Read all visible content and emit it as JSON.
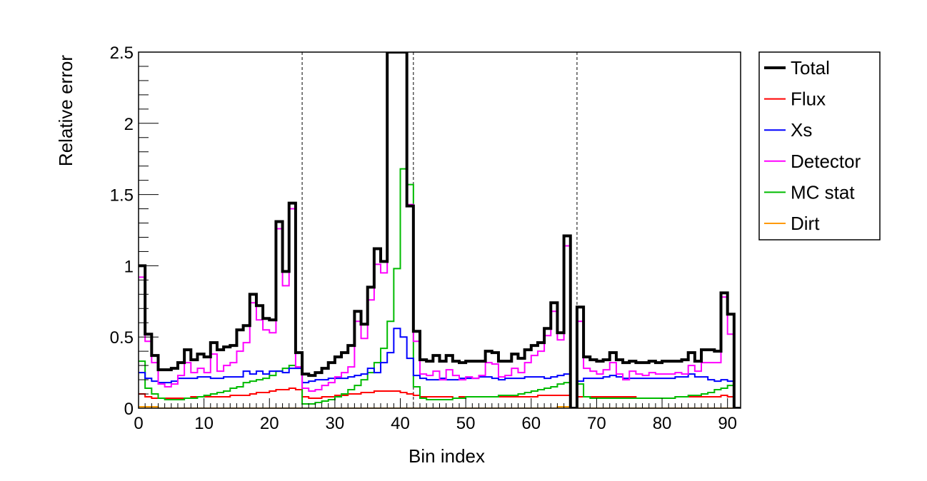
{
  "chart_data": {
    "type": "line",
    "style": "step-histogram",
    "xlabel": "Bin index",
    "ylabel": "Relative error",
    "xlim": [
      0,
      92
    ],
    "ylim": [
      0,
      2.5
    ],
    "x_ticks": [
      0,
      10,
      20,
      30,
      40,
      50,
      60,
      70,
      80,
      90
    ],
    "y_ticks": [
      0,
      0.5,
      1,
      1.5,
      2,
      2.5
    ],
    "y_tick_labels": [
      "0",
      "0.5",
      "1",
      "1.5",
      "2",
      "2.5"
    ],
    "grid": false,
    "legend_position": "outside-right",
    "dashed_vlines": [
      25,
      42,
      67
    ],
    "bin_edges": [
      0,
      92
    ],
    "series": [
      {
        "name": "Total",
        "color": "#000000",
        "bold": true,
        "values": [
          1.0,
          0.52,
          0.37,
          0.27,
          0.27,
          0.28,
          0.32,
          0.41,
          0.34,
          0.38,
          0.36,
          0.46,
          0.41,
          0.43,
          0.44,
          0.55,
          0.58,
          0.8,
          0.72,
          0.63,
          0.62,
          1.31,
          0.96,
          1.44,
          0.39,
          0.24,
          0.23,
          0.25,
          0.28,
          0.32,
          0.36,
          0.39,
          0.44,
          0.68,
          0.59,
          0.85,
          1.12,
          1.03,
          2.5,
          2.5,
          2.5,
          1.42,
          0.54,
          0.34,
          0.33,
          0.37,
          0.33,
          0.37,
          0.33,
          0.32,
          0.33,
          0.33,
          0.33,
          0.4,
          0.39,
          0.33,
          0.33,
          0.38,
          0.35,
          0.41,
          0.44,
          0.46,
          0.56,
          0.74,
          0.53,
          1.21,
          0.0,
          0.71,
          0.36,
          0.34,
          0.33,
          0.34,
          0.39,
          0.34,
          0.32,
          0.33,
          0.32,
          0.32,
          0.33,
          0.32,
          0.33,
          0.33,
          0.33,
          0.34,
          0.39,
          0.33,
          0.41,
          0.41,
          0.4,
          0.81,
          0.66,
          0.0
        ]
      },
      {
        "name": "Flux",
        "color": "#ff0000",
        "bold": false,
        "values": [
          0.1,
          0.08,
          0.07,
          0.07,
          0.07,
          0.07,
          0.07,
          0.07,
          0.08,
          0.08,
          0.08,
          0.08,
          0.08,
          0.08,
          0.09,
          0.09,
          0.09,
          0.1,
          0.11,
          0.11,
          0.12,
          0.13,
          0.13,
          0.14,
          0.13,
          0.08,
          0.07,
          0.07,
          0.08,
          0.08,
          0.09,
          0.09,
          0.1,
          0.1,
          0.11,
          0.11,
          0.12,
          0.12,
          0.12,
          0.12,
          0.11,
          0.1,
          0.09,
          0.08,
          0.08,
          0.08,
          0.08,
          0.08,
          0.07,
          0.08,
          0.08,
          0.08,
          0.08,
          0.08,
          0.08,
          0.08,
          0.08,
          0.08,
          0.08,
          0.08,
          0.08,
          0.09,
          0.09,
          0.09,
          0.09,
          0.09,
          0.0,
          0.08,
          0.08,
          0.08,
          0.08,
          0.08,
          0.08,
          0.08,
          0.08,
          0.08,
          0.07,
          0.07,
          0.07,
          0.07,
          0.07,
          0.07,
          0.08,
          0.08,
          0.08,
          0.08,
          0.08,
          0.08,
          0.08,
          0.09,
          0.08,
          0.0
        ]
      },
      {
        "name": "Xs",
        "color": "#0000ff",
        "bold": false,
        "values": [
          0.25,
          0.21,
          0.19,
          0.18,
          0.18,
          0.19,
          0.21,
          0.21,
          0.21,
          0.22,
          0.22,
          0.21,
          0.21,
          0.22,
          0.22,
          0.22,
          0.26,
          0.24,
          0.26,
          0.24,
          0.26,
          0.26,
          0.25,
          0.28,
          0.28,
          0.18,
          0.19,
          0.2,
          0.2,
          0.21,
          0.21,
          0.21,
          0.22,
          0.23,
          0.24,
          0.28,
          0.25,
          0.32,
          0.39,
          0.56,
          0.5,
          0.35,
          0.23,
          0.21,
          0.2,
          0.2,
          0.21,
          0.2,
          0.2,
          0.21,
          0.21,
          0.21,
          0.22,
          0.22,
          0.21,
          0.2,
          0.21,
          0.21,
          0.21,
          0.22,
          0.22,
          0.22,
          0.21,
          0.22,
          0.23,
          0.24,
          0.0,
          0.19,
          0.21,
          0.21,
          0.21,
          0.22,
          0.23,
          0.22,
          0.21,
          0.21,
          0.21,
          0.21,
          0.21,
          0.21,
          0.21,
          0.21,
          0.22,
          0.22,
          0.24,
          0.22,
          0.22,
          0.2,
          0.19,
          0.2,
          0.19,
          0.0
        ]
      },
      {
        "name": "Detector",
        "color": "#ff00ff",
        "bold": false,
        "values": [
          0.92,
          0.47,
          0.32,
          0.17,
          0.15,
          0.17,
          0.23,
          0.32,
          0.25,
          0.28,
          0.25,
          0.38,
          0.26,
          0.3,
          0.32,
          0.4,
          0.46,
          0.74,
          0.62,
          0.55,
          0.53,
          1.26,
          0.86,
          1.4,
          0.29,
          0.14,
          0.12,
          0.13,
          0.16,
          0.18,
          0.22,
          0.25,
          0.29,
          0.61,
          0.49,
          0.76,
          1.01,
          0.95,
          2.5,
          2.5,
          2.5,
          1.43,
          0.47,
          0.24,
          0.23,
          0.26,
          0.2,
          0.27,
          0.23,
          0.2,
          0.22,
          0.21,
          0.23,
          0.32,
          0.31,
          0.22,
          0.23,
          0.28,
          0.25,
          0.32,
          0.37,
          0.4,
          0.51,
          0.68,
          0.48,
          1.14,
          0.0,
          0.61,
          0.28,
          0.26,
          0.24,
          0.27,
          0.32,
          0.24,
          0.2,
          0.26,
          0.24,
          0.23,
          0.25,
          0.24,
          0.24,
          0.24,
          0.25,
          0.24,
          0.3,
          0.26,
          0.32,
          0.32,
          0.32,
          0.78,
          0.52,
          0.0
        ]
      },
      {
        "name": "MC stat",
        "color": "#00bb00",
        "bold": false,
        "values": [
          0.33,
          0.14,
          0.1,
          0.07,
          0.06,
          0.06,
          0.06,
          0.07,
          0.07,
          0.08,
          0.09,
          0.1,
          0.11,
          0.12,
          0.14,
          0.15,
          0.18,
          0.19,
          0.2,
          0.21,
          0.23,
          0.26,
          0.28,
          0.3,
          0.29,
          0.03,
          0.03,
          0.04,
          0.05,
          0.06,
          0.08,
          0.1,
          0.13,
          0.16,
          0.2,
          0.25,
          0.32,
          0.42,
          0.61,
          0.98,
          1.68,
          1.57,
          0.15,
          0.07,
          0.06,
          0.06,
          0.06,
          0.06,
          0.07,
          0.07,
          0.08,
          0.08,
          0.08,
          0.08,
          0.08,
          0.09,
          0.09,
          0.09,
          0.1,
          0.11,
          0.12,
          0.13,
          0.14,
          0.15,
          0.17,
          0.18,
          0.0,
          0.17,
          0.08,
          0.07,
          0.07,
          0.07,
          0.07,
          0.07,
          0.07,
          0.07,
          0.07,
          0.07,
          0.07,
          0.07,
          0.07,
          0.07,
          0.08,
          0.08,
          0.09,
          0.09,
          0.1,
          0.11,
          0.13,
          0.14,
          0.16,
          0.0
        ]
      },
      {
        "name": "Dirt",
        "color": "#ff9900",
        "bold": false,
        "values": [
          0.01,
          0.01,
          0.01,
          0.0,
          0.0,
          0.0,
          0.0,
          0.0,
          0.0,
          0.0,
          0.0,
          0.0,
          0.0,
          0.0,
          0.0,
          0.0,
          0.0,
          0.0,
          0.0,
          0.0,
          0.0,
          0.0,
          0.0,
          0.0,
          0.0,
          0.0,
          0.0,
          0.0,
          0.0,
          0.0,
          0.0,
          0.0,
          0.0,
          0.0,
          0.0,
          0.0,
          0.0,
          0.0,
          0.0,
          0.0,
          0.0,
          0.0,
          0.0,
          0.0,
          0.0,
          0.0,
          0.0,
          0.0,
          0.0,
          0.0,
          0.0,
          0.0,
          0.0,
          0.0,
          0.0,
          0.0,
          0.0,
          0.0,
          0.0,
          0.0,
          0.0,
          0.0,
          0.0,
          0.0,
          0.01,
          0.01,
          0.0,
          0.0,
          0.0,
          0.0,
          0.0,
          0.0,
          0.0,
          0.0,
          0.0,
          0.0,
          0.0,
          0.0,
          0.0,
          0.0,
          0.0,
          0.0,
          0.0,
          0.0,
          0.0,
          0.0,
          0.0,
          0.0,
          0.0,
          0.0,
          0.0,
          0.0
        ]
      }
    ]
  }
}
